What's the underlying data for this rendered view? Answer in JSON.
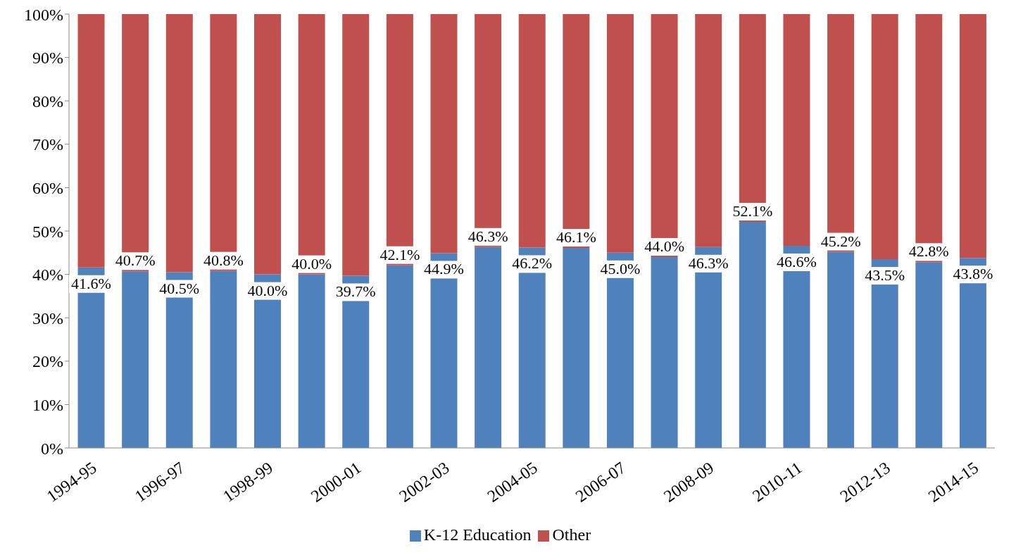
{
  "chart_data": {
    "type": "bar",
    "stacked": true,
    "categories": [
      "1994-95",
      null,
      "1996-97",
      null,
      "1998-99",
      null,
      "2000-01",
      null,
      "2002-03",
      null,
      "2004-05",
      null,
      "2006-07",
      null,
      "2008-09",
      null,
      "2010-11",
      null,
      "2012-13",
      null,
      "2014-15"
    ],
    "series": [
      {
        "name": "K-12 Education",
        "color": "#4f81bd",
        "values": [
          41.6,
          40.7,
          40.5,
          40.8,
          40.0,
          40.0,
          39.7,
          42.1,
          44.9,
          46.3,
          46.2,
          46.1,
          45.0,
          44.0,
          46.3,
          52.1,
          46.6,
          45.2,
          43.5,
          42.8,
          43.8
        ],
        "value_labels": [
          "41.6%",
          "40.7%",
          "40.5%",
          "40.8%",
          "40.0%",
          "40.0%",
          "39.7%",
          "42.1%",
          "44.9%",
          "46.3%",
          "46.2%",
          "46.1%",
          "45.0%",
          "44.0%",
          "46.3%",
          "52.1%",
          "46.6%",
          "45.2%",
          "43.5%",
          "42.8%",
          "43.8%"
        ]
      },
      {
        "name": "Other",
        "color": "#c0504d",
        "values": [
          58.4,
          59.3,
          59.5,
          59.2,
          60.0,
          60.0,
          60.3,
          57.9,
          55.1,
          53.7,
          53.8,
          53.9,
          55.0,
          56.0,
          53.7,
          47.9,
          53.4,
          54.8,
          56.5,
          57.2,
          56.2
        ]
      }
    ],
    "ylim": [
      0,
      100
    ],
    "yticks": [
      {
        "value": 0,
        "label": "0%"
      },
      {
        "value": 10,
        "label": "10%"
      },
      {
        "value": 20,
        "label": "20%"
      },
      {
        "value": 30,
        "label": "30%"
      },
      {
        "value": 40,
        "label": "40%"
      },
      {
        "value": 50,
        "label": "50%"
      },
      {
        "value": 60,
        "label": "60%"
      },
      {
        "value": 70,
        "label": "70%"
      },
      {
        "value": 80,
        "label": "80%"
      },
      {
        "value": 90,
        "label": "90%"
      },
      {
        "value": 100,
        "label": "100%"
      }
    ],
    "grid": false,
    "legend": "bottom"
  }
}
